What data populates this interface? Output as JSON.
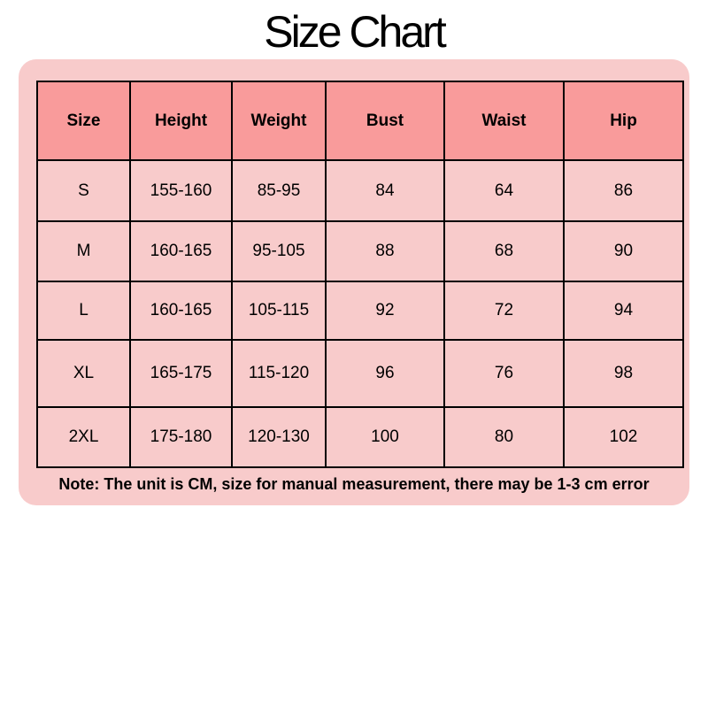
{
  "title": "Size Chart",
  "colors": {
    "card_bg": "#f8cbcb",
    "header_bg": "#f99b9b",
    "border": "#000000"
  },
  "table": {
    "headers": [
      "Size",
      "Height",
      "Weight",
      "Bust",
      "Waist",
      "Hip"
    ],
    "rows": [
      [
        "S",
        "155-160",
        "85-95",
        "84",
        "64",
        "86"
      ],
      [
        "M",
        "160-165",
        "95-105",
        "88",
        "68",
        "90"
      ],
      [
        "L",
        "160-165",
        "105-115",
        "92",
        "72",
        "94"
      ],
      [
        "XL",
        "165-175",
        "115-120",
        "96",
        "76",
        "98"
      ],
      [
        "2XL",
        "175-180",
        "120-130",
        "100",
        "80",
        "102"
      ]
    ]
  },
  "note": "Note: The unit is CM, size for manual measurement, there may be 1-3 cm error"
}
